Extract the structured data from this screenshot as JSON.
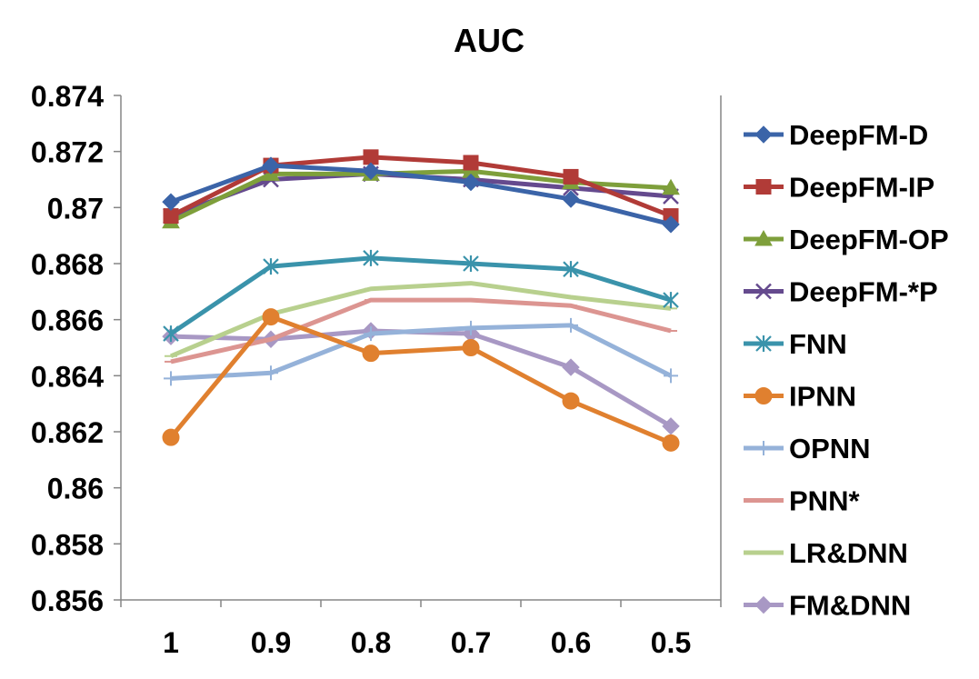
{
  "chart_data": {
    "type": "line",
    "title": "AUC",
    "xlabel": "",
    "ylabel": "",
    "categories": [
      "1",
      "0.9",
      "0.8",
      "0.7",
      "0.6",
      "0.5"
    ],
    "ylim": [
      0.856,
      0.874
    ],
    "yticks": [
      "0.856",
      "0.858",
      "0.86",
      "0.862",
      "0.864",
      "0.866",
      "0.868",
      "0.87",
      "0.872",
      "0.874"
    ],
    "grid": false,
    "legend_position": "right",
    "series": [
      {
        "name": "DeepFM-D",
        "color": "#3b64a8",
        "marker": "diamond",
        "values": [
          0.8702,
          0.8715,
          0.8713,
          0.8709,
          0.8703,
          0.8694
        ]
      },
      {
        "name": "DeepFM-IP",
        "color": "#b13b37",
        "marker": "square",
        "values": [
          0.8697,
          0.8715,
          0.8718,
          0.8716,
          0.8711,
          0.8697
        ]
      },
      {
        "name": "DeepFM-OP",
        "color": "#7e9f3b",
        "marker": "triangle",
        "values": [
          0.8695,
          0.8712,
          0.8712,
          0.8713,
          0.8709,
          0.8707
        ]
      },
      {
        "name": "DeepFM-*P",
        "color": "#654a8e",
        "marker": "x",
        "values": [
          0.8697,
          0.871,
          0.8712,
          0.871,
          0.8707,
          0.8704
        ]
      },
      {
        "name": "FNN",
        "color": "#3a93ab",
        "marker": "star",
        "values": [
          0.8655,
          0.8679,
          0.8682,
          0.868,
          0.8678,
          0.8667
        ]
      },
      {
        "name": "IPNN",
        "color": "#e0802f",
        "marker": "circle",
        "values": [
          0.8618,
          0.8661,
          0.8648,
          0.865,
          0.8631,
          0.8616
        ]
      },
      {
        "name": "OPNN",
        "color": "#95b2d9",
        "marker": "plus",
        "values": [
          0.8639,
          0.8641,
          0.8655,
          0.8657,
          0.8658,
          0.864
        ]
      },
      {
        "name": "PNN*",
        "color": "#dc9591",
        "marker": "dash",
        "values": [
          0.8645,
          0.8653,
          0.8667,
          0.8667,
          0.8665,
          0.8656
        ]
      },
      {
        "name": "LR&DNN",
        "color": "#b8d08e",
        "marker": "dash",
        "values": [
          0.8647,
          0.8662,
          0.8671,
          0.8673,
          0.8668,
          0.8664
        ]
      },
      {
        "name": "FM&DNN",
        "color": "#a898c4",
        "marker": "diamond",
        "values": [
          0.8654,
          0.8653,
          0.8656,
          0.8655,
          0.8643,
          0.8622
        ]
      }
    ]
  }
}
